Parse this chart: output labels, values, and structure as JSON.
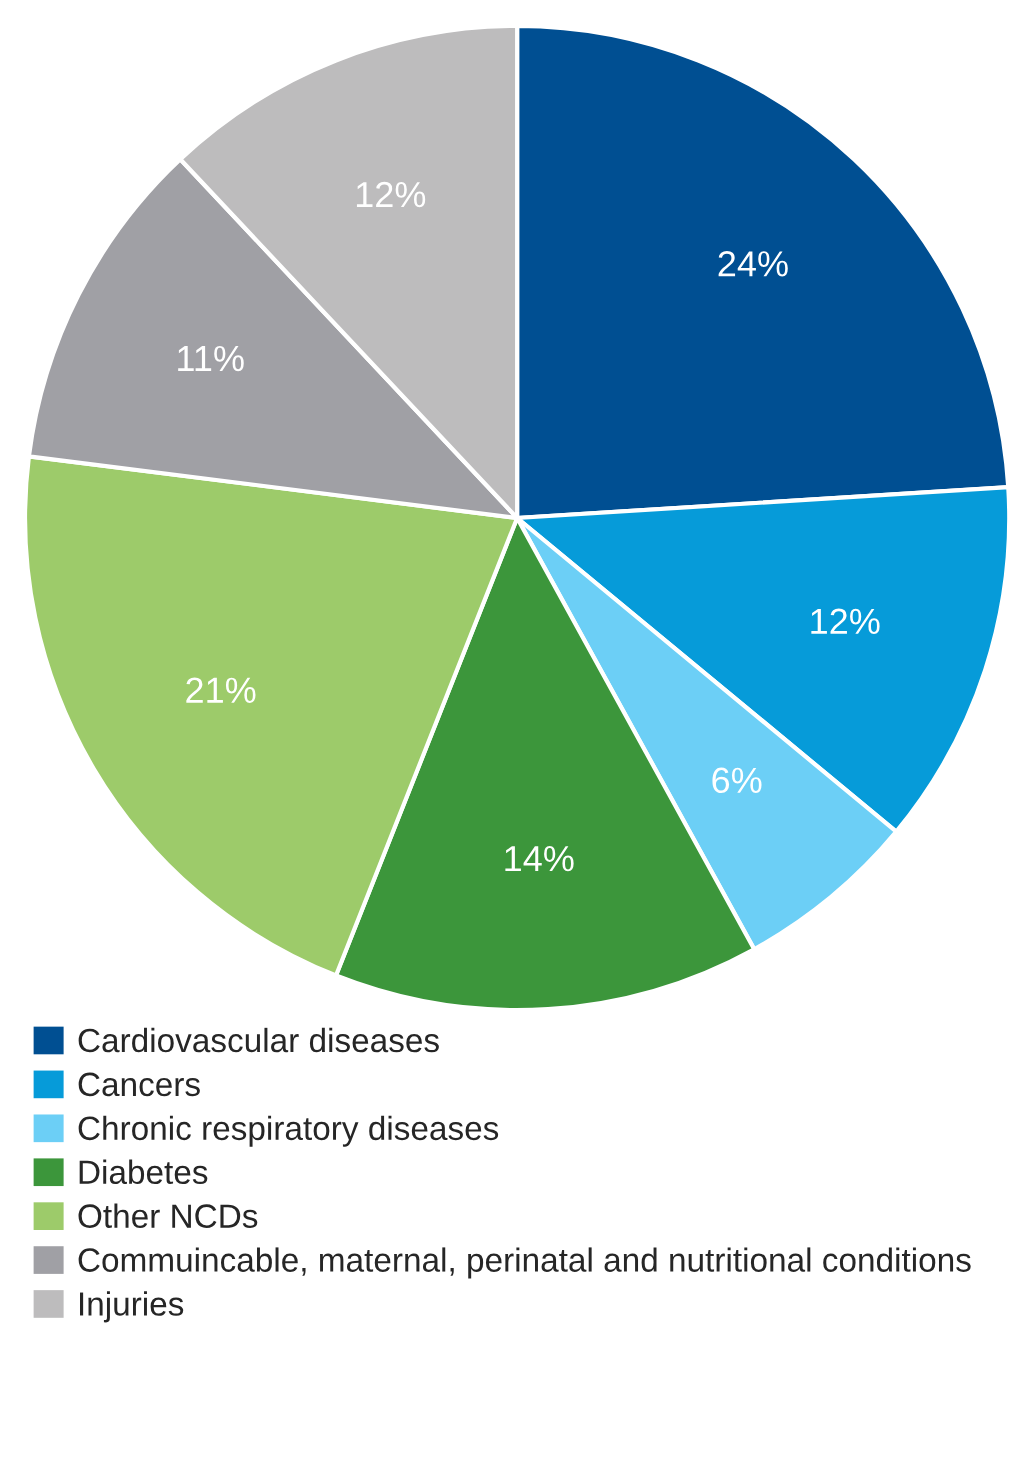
{
  "chart_data": {
    "type": "pie",
    "categories": [
      "Cardiovascular diseases",
      "Cancers",
      "Chronic respiratory diseases",
      "Diabetes",
      "Other NCDs",
      "Commuincable, maternal, perinatal and nutritional conditions",
      "Injuries"
    ],
    "values": [
      24,
      12,
      6,
      14,
      21,
      11,
      12
    ],
    "colors": [
      "#004f92",
      "#069bd9",
      "#6ccff6",
      "#3c963b",
      "#9dcb6a",
      "#a0a0a5",
      "#bdbcbd"
    ],
    "value_labels": [
      "24%",
      "12%",
      "6%",
      "14%",
      "21%",
      "11%",
      "12%"
    ],
    "legend": "bottom"
  }
}
